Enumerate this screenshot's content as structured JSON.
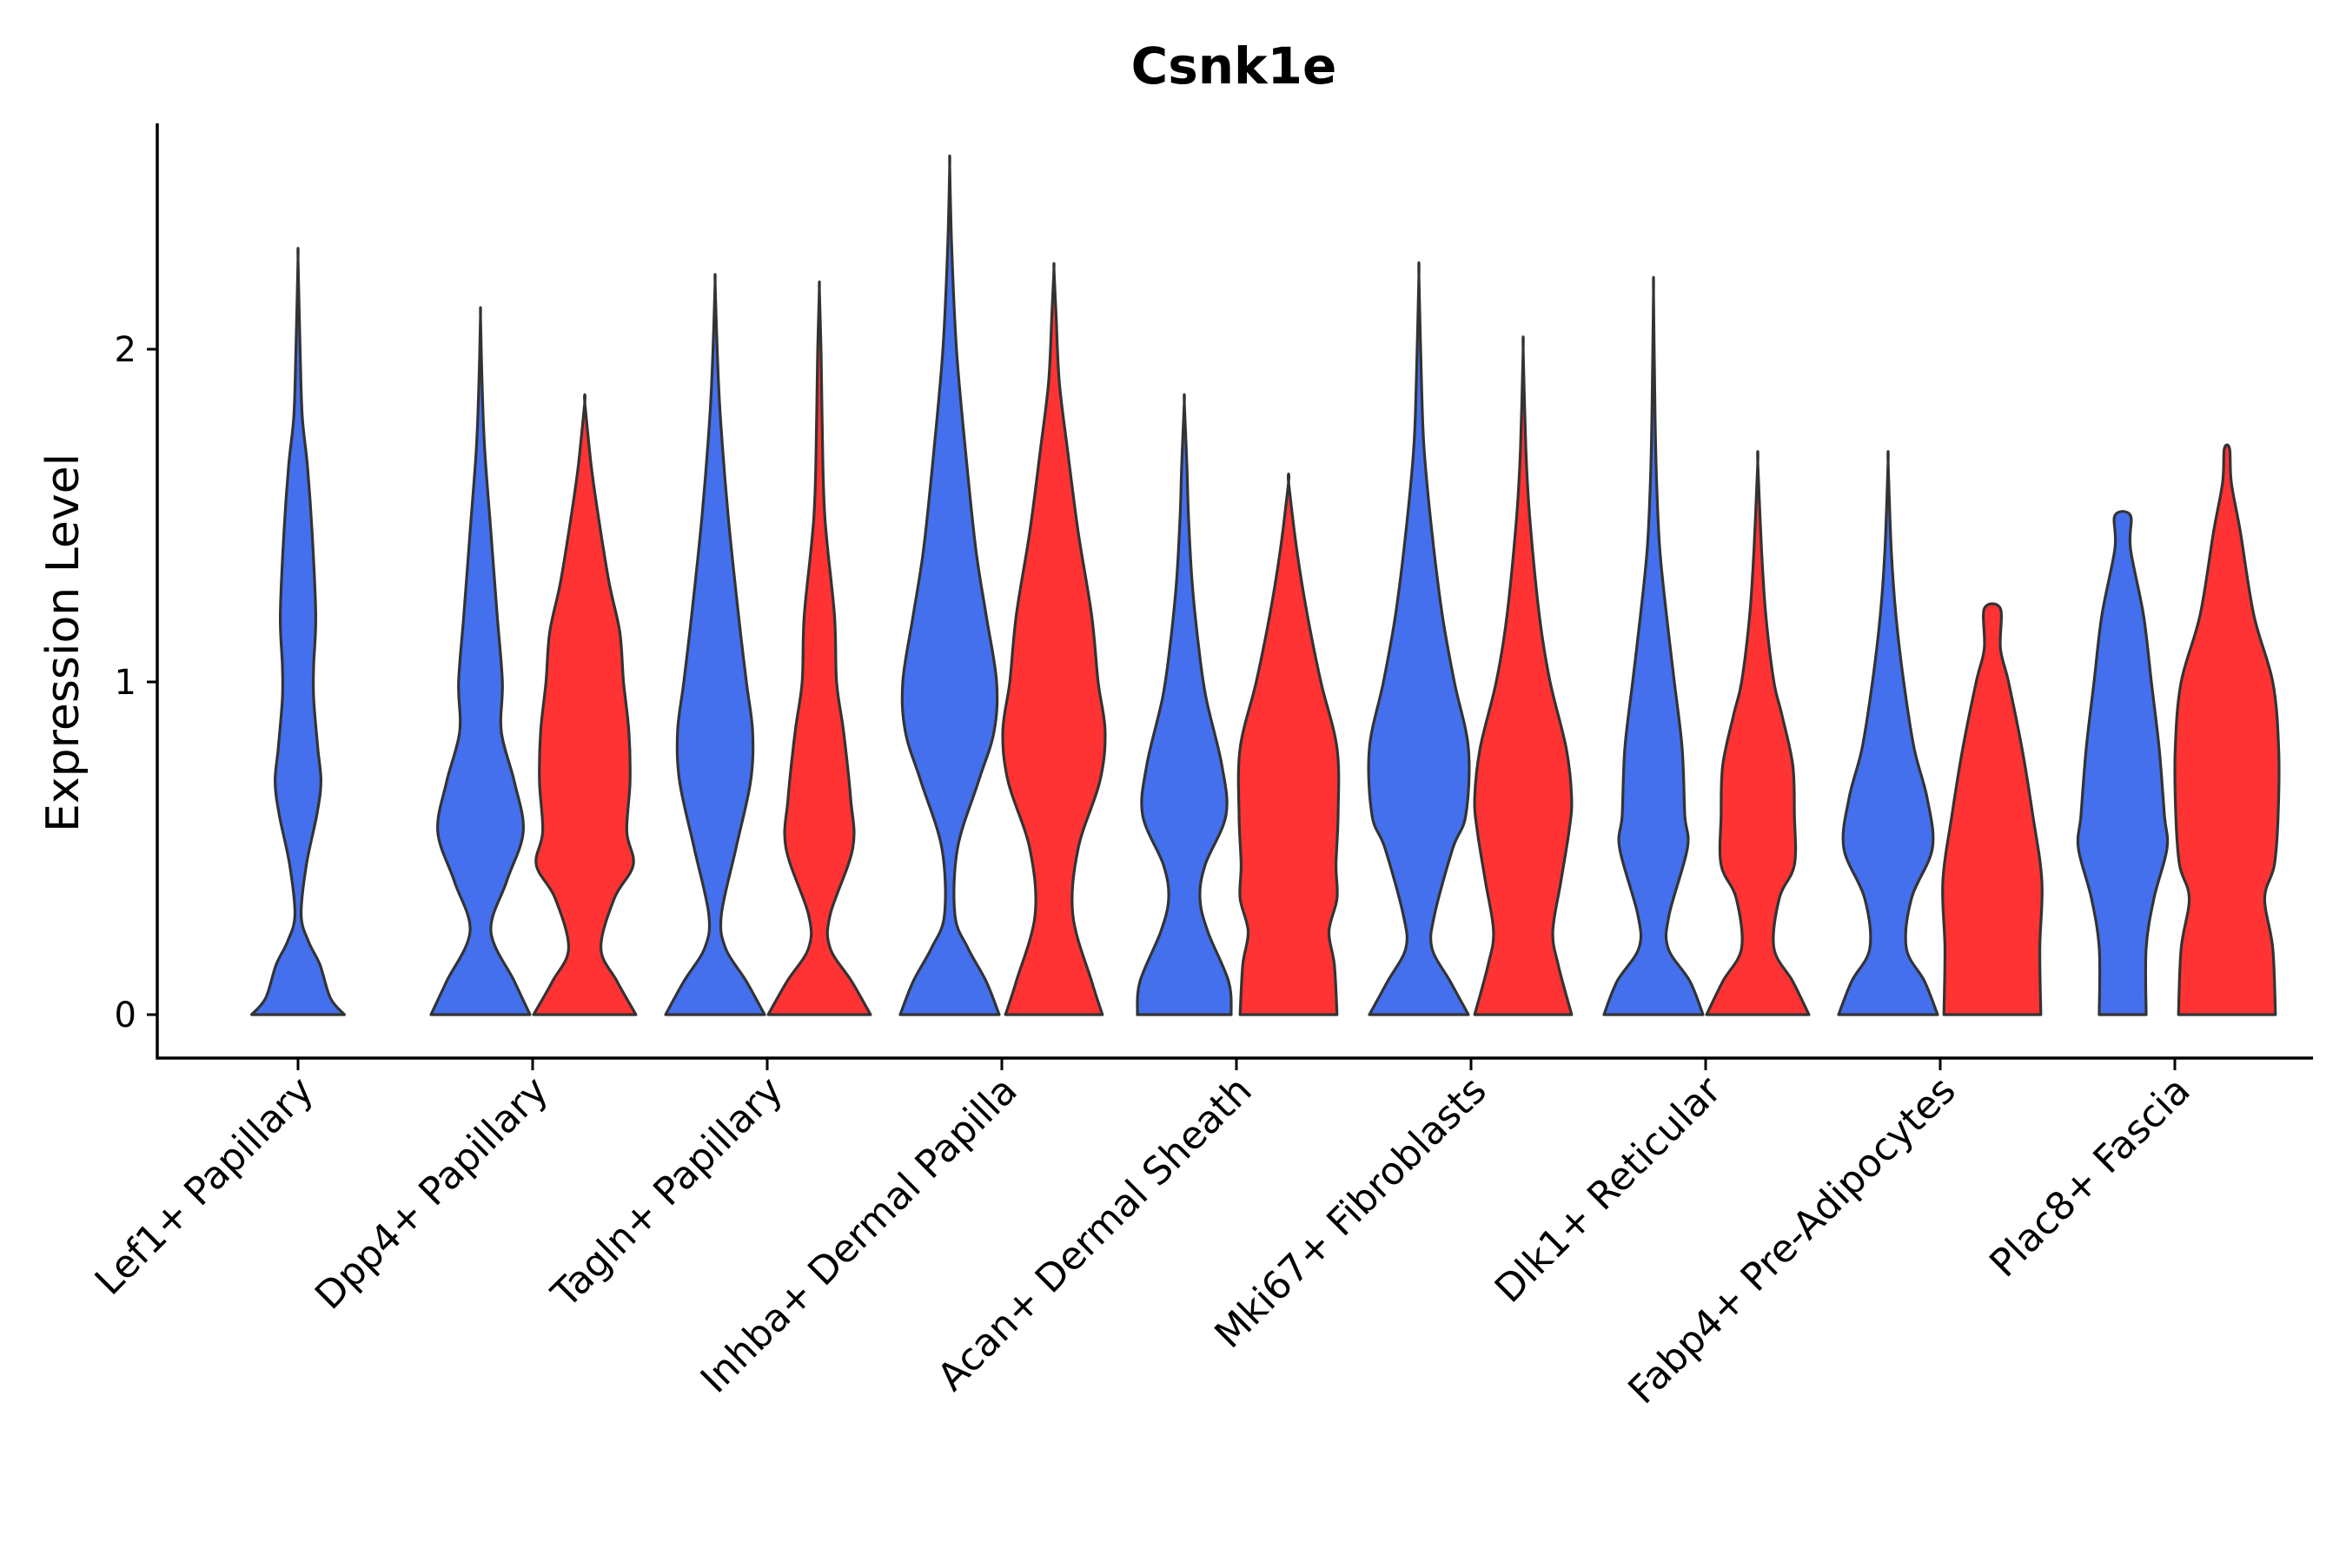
{
  "chart_data": {
    "type": "violin",
    "title": "Csnk1e",
    "xlabel": "",
    "ylabel": "Expression Level",
    "ylim": [
      -0.13,
      2.7
    ],
    "yticks": [
      0,
      1,
      2
    ],
    "grid": false,
    "legend": "none",
    "series_colors": {
      "A": "#4470ED",
      "B": "#FF3333"
    },
    "categories": [
      "Lef1+ Papillary",
      "Dpp4+ Papillary",
      "Tagln+ Papillary",
      "Inhba+ Dermal Papilla",
      "Acan+ Dermal Sheath",
      "Mki67+ Fibroblasts",
      "Dlk1+ Reticular",
      "Fabp4+ Pre-Adipocytes",
      "Plac8+ Fascia"
    ],
    "violins": [
      {
        "category": "Lef1+ Papillary",
        "group": "A",
        "max": 2.27,
        "profile": [
          [
            0,
            0.89
          ],
          [
            0.05,
            0.62
          ],
          [
            0.15,
            0.42
          ],
          [
            0.22,
            0.2
          ],
          [
            0.3,
            0.06
          ],
          [
            0.45,
            0.16
          ],
          [
            0.6,
            0.36
          ],
          [
            0.7,
            0.44
          ],
          [
            0.8,
            0.38
          ],
          [
            0.95,
            0.3
          ],
          [
            1.05,
            0.3
          ],
          [
            1.2,
            0.34
          ],
          [
            1.45,
            0.27
          ],
          [
            1.65,
            0.18
          ],
          [
            1.8,
            0.08
          ],
          [
            2.0,
            0.04
          ],
          [
            2.27,
            0
          ]
        ]
      },
      {
        "category": "Dpp4+ Papillary",
        "group": "A",
        "max": 2.1,
        "profile": [
          [
            0,
            0.95
          ],
          [
            0.1,
            0.65
          ],
          [
            0.25,
            0.2
          ],
          [
            0.4,
            0.5
          ],
          [
            0.55,
            0.82
          ],
          [
            0.7,
            0.65
          ],
          [
            0.85,
            0.4
          ],
          [
            1.0,
            0.42
          ],
          [
            1.2,
            0.32
          ],
          [
            1.45,
            0.2
          ],
          [
            1.7,
            0.08
          ],
          [
            1.9,
            0.03
          ],
          [
            2.1,
            0
          ]
        ]
      },
      {
        "category": "Dpp4+ Papillary",
        "group": "B",
        "max": 1.84,
        "profile": [
          [
            0,
            0.95
          ],
          [
            0.1,
            0.6
          ],
          [
            0.2,
            0.3
          ],
          [
            0.35,
            0.55
          ],
          [
            0.45,
            0.9
          ],
          [
            0.55,
            0.78
          ],
          [
            0.7,
            0.84
          ],
          [
            0.85,
            0.82
          ],
          [
            1.0,
            0.72
          ],
          [
            1.15,
            0.65
          ],
          [
            1.3,
            0.45
          ],
          [
            1.5,
            0.25
          ],
          [
            1.65,
            0.12
          ],
          [
            1.84,
            0
          ]
        ]
      },
      {
        "category": "Tagln+ Papillary",
        "group": "A",
        "max": 2.2,
        "profile": [
          [
            0,
            0.95
          ],
          [
            0.1,
            0.6
          ],
          [
            0.2,
            0.2
          ],
          [
            0.3,
            0.12
          ],
          [
            0.5,
            0.4
          ],
          [
            0.7,
            0.68
          ],
          [
            0.85,
            0.72
          ],
          [
            1.0,
            0.6
          ],
          [
            1.2,
            0.45
          ],
          [
            1.5,
            0.25
          ],
          [
            1.8,
            0.1
          ],
          [
            2.0,
            0.04
          ],
          [
            2.2,
            0
          ]
        ]
      },
      {
        "category": "Tagln+ Papillary",
        "group": "B",
        "max": 2.18,
        "profile": [
          [
            0,
            0.95
          ],
          [
            0.1,
            0.6
          ],
          [
            0.2,
            0.2
          ],
          [
            0.3,
            0.2
          ],
          [
            0.5,
            0.62
          ],
          [
            0.65,
            0.58
          ],
          [
            0.85,
            0.45
          ],
          [
            1.0,
            0.32
          ],
          [
            1.2,
            0.28
          ],
          [
            1.5,
            0.1
          ],
          [
            1.8,
            0.05
          ],
          [
            2.0,
            0.03
          ],
          [
            2.18,
            0
          ]
        ]
      },
      {
        "category": "Inhba+ Dermal Papilla",
        "group": "A",
        "max": 2.55,
        "profile": [
          [
            0,
            0.95
          ],
          [
            0.1,
            0.7
          ],
          [
            0.2,
            0.35
          ],
          [
            0.3,
            0.1
          ],
          [
            0.5,
            0.15
          ],
          [
            0.7,
            0.55
          ],
          [
            0.85,
            0.85
          ],
          [
            1.0,
            0.9
          ],
          [
            1.2,
            0.7
          ],
          [
            1.4,
            0.5
          ],
          [
            1.7,
            0.3
          ],
          [
            2.0,
            0.13
          ],
          [
            2.3,
            0.04
          ],
          [
            2.55,
            0
          ]
        ]
      },
      {
        "category": "Inhba+ Dermal Papilla",
        "group": "B",
        "max": 2.24,
        "profile": [
          [
            0,
            0.9
          ],
          [
            0.1,
            0.7
          ],
          [
            0.3,
            0.35
          ],
          [
            0.5,
            0.45
          ],
          [
            0.7,
            0.85
          ],
          [
            0.85,
            0.95
          ],
          [
            1.0,
            0.82
          ],
          [
            1.2,
            0.7
          ],
          [
            1.45,
            0.45
          ],
          [
            1.7,
            0.25
          ],
          [
            1.9,
            0.1
          ],
          [
            2.1,
            0.04
          ],
          [
            2.24,
            0
          ]
        ]
      },
      {
        "category": "Acan+ Dermal Sheath",
        "group": "A",
        "max": 1.84,
        "profile": [
          [
            0,
            0.9
          ],
          [
            0.1,
            0.85
          ],
          [
            0.25,
            0.45
          ],
          [
            0.35,
            0.3
          ],
          [
            0.45,
            0.4
          ],
          [
            0.6,
            0.8
          ],
          [
            0.75,
            0.72
          ],
          [
            0.95,
            0.42
          ],
          [
            1.1,
            0.28
          ],
          [
            1.3,
            0.15
          ],
          [
            1.5,
            0.08
          ],
          [
            1.65,
            0.05
          ],
          [
            1.84,
            0
          ]
        ]
      },
      {
        "category": "Acan+ Dermal Sheath",
        "group": "B",
        "max": 1.6,
        "profile": [
          [
            0,
            0.9
          ],
          [
            0.15,
            0.85
          ],
          [
            0.25,
            0.75
          ],
          [
            0.35,
            0.9
          ],
          [
            0.45,
            0.88
          ],
          [
            0.6,
            0.92
          ],
          [
            0.8,
            0.9
          ],
          [
            1.0,
            0.6
          ],
          [
            1.2,
            0.35
          ],
          [
            1.4,
            0.15
          ],
          [
            1.6,
            0
          ]
        ]
      },
      {
        "category": "Mki67+ Fibroblasts",
        "group": "A",
        "max": 2.22,
        "profile": [
          [
            0,
            0.95
          ],
          [
            0.1,
            0.6
          ],
          [
            0.2,
            0.25
          ],
          [
            0.3,
            0.3
          ],
          [
            0.5,
            0.65
          ],
          [
            0.6,
            0.9
          ],
          [
            0.8,
            0.95
          ],
          [
            1.0,
            0.68
          ],
          [
            1.2,
            0.45
          ],
          [
            1.45,
            0.25
          ],
          [
            1.7,
            0.1
          ],
          [
            1.9,
            0.05
          ],
          [
            2.22,
            0
          ]
        ]
      },
      {
        "category": "Mki67+ Fibroblasts",
        "group": "B",
        "max": 2.0,
        "profile": [
          [
            0,
            0.9
          ],
          [
            0.15,
            0.65
          ],
          [
            0.25,
            0.55
          ],
          [
            0.4,
            0.7
          ],
          [
            0.55,
            0.85
          ],
          [
            0.65,
            0.9
          ],
          [
            0.8,
            0.8
          ],
          [
            1.0,
            0.5
          ],
          [
            1.2,
            0.3
          ],
          [
            1.5,
            0.12
          ],
          [
            1.7,
            0.05
          ],
          [
            2.0,
            0
          ]
        ]
      },
      {
        "category": "Dlk1+ Reticular",
        "group": "A",
        "max": 2.17,
        "profile": [
          [
            0,
            0.95
          ],
          [
            0.1,
            0.7
          ],
          [
            0.2,
            0.28
          ],
          [
            0.3,
            0.3
          ],
          [
            0.5,
            0.65
          ],
          [
            0.6,
            0.6
          ],
          [
            0.8,
            0.55
          ],
          [
            1.0,
            0.4
          ],
          [
            1.2,
            0.25
          ],
          [
            1.4,
            0.12
          ],
          [
            1.6,
            0.06
          ],
          [
            1.8,
            0.03
          ],
          [
            2.17,
            0
          ]
        ]
      },
      {
        "category": "Dlk1+ Reticular",
        "group": "B",
        "max": 1.66,
        "profile": [
          [
            0,
            0.95
          ],
          [
            0.1,
            0.65
          ],
          [
            0.2,
            0.3
          ],
          [
            0.35,
            0.4
          ],
          [
            0.45,
            0.68
          ],
          [
            0.6,
            0.68
          ],
          [
            0.75,
            0.65
          ],
          [
            0.9,
            0.45
          ],
          [
            1.0,
            0.3
          ],
          [
            1.2,
            0.15
          ],
          [
            1.4,
            0.07
          ],
          [
            1.66,
            0
          ]
        ]
      },
      {
        "category": "Fabp4+ Pre-Adipocytes",
        "group": "A",
        "max": 1.66,
        "profile": [
          [
            0,
            0.95
          ],
          [
            0.1,
            0.7
          ],
          [
            0.2,
            0.35
          ],
          [
            0.35,
            0.45
          ],
          [
            0.5,
            0.85
          ],
          [
            0.65,
            0.75
          ],
          [
            0.8,
            0.5
          ],
          [
            1.0,
            0.3
          ],
          [
            1.2,
            0.15
          ],
          [
            1.4,
            0.06
          ],
          [
            1.66,
            0
          ]
        ]
      },
      {
        "category": "Fabp4+ Pre-Adipocytes",
        "group": "B",
        "max": 1.22,
        "profile": [
          [
            0,
            0.9
          ],
          [
            0.2,
            0.88
          ],
          [
            0.4,
            0.92
          ],
          [
            0.6,
            0.75
          ],
          [
            0.8,
            0.55
          ],
          [
            1.0,
            0.3
          ],
          [
            1.1,
            0.15
          ],
          [
            1.22,
            0.15
          ]
        ]
      },
      {
        "category": "Plac8+ Fascia",
        "group": "A",
        "max": 1.5,
        "profile": [
          [
            0,
            0.45
          ],
          [
            0.2,
            0.45
          ],
          [
            0.35,
            0.6
          ],
          [
            0.5,
            0.85
          ],
          [
            0.6,
            0.8
          ],
          [
            0.8,
            0.7
          ],
          [
            1.0,
            0.55
          ],
          [
            1.2,
            0.4
          ],
          [
            1.4,
            0.15
          ],
          [
            1.5,
            0.15
          ]
        ]
      },
      {
        "category": "Plac8+ Fascia",
        "group": "B",
        "max": 1.7,
        "profile": [
          [
            0,
            0.9
          ],
          [
            0.2,
            0.85
          ],
          [
            0.35,
            0.7
          ],
          [
            0.45,
            0.88
          ],
          [
            0.6,
            0.95
          ],
          [
            0.8,
            0.96
          ],
          [
            1.0,
            0.85
          ],
          [
            1.2,
            0.5
          ],
          [
            1.45,
            0.25
          ],
          [
            1.6,
            0.08
          ],
          [
            1.7,
            0.05
          ]
        ]
      }
    ]
  }
}
